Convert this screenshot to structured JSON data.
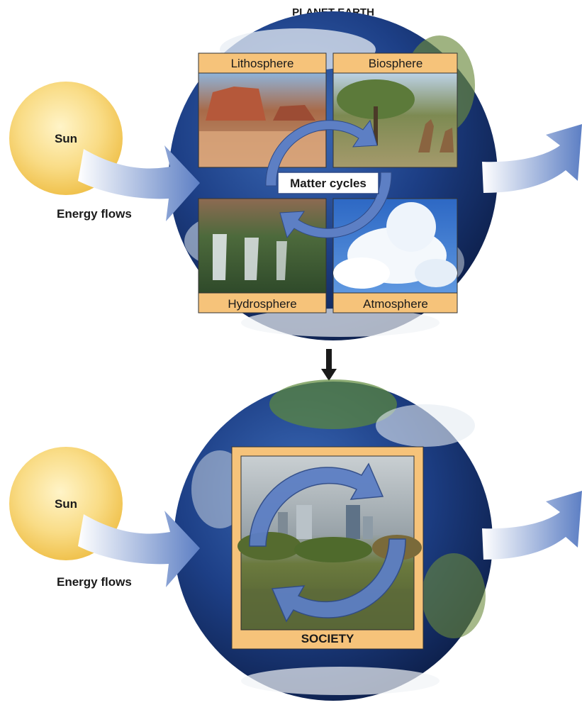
{
  "title": "PLANET EARTH",
  "top": {
    "sun": "Sun",
    "energy": "Energy flows",
    "panels": {
      "litho": "Lithosphere",
      "bio": "Biosphere",
      "hydro": "Hydrosphere",
      "atmo": "Atmosphere"
    },
    "matter": "Matter cycles"
  },
  "bottom": {
    "sun": "Sun",
    "energy": "Energy flows",
    "society": "SOCIETY"
  },
  "colors": {
    "sun": "#f8d36a",
    "panel_frame": "#f6c37a",
    "arrow_blue": "#5d7fc4",
    "ocean": "#1d3f86"
  }
}
